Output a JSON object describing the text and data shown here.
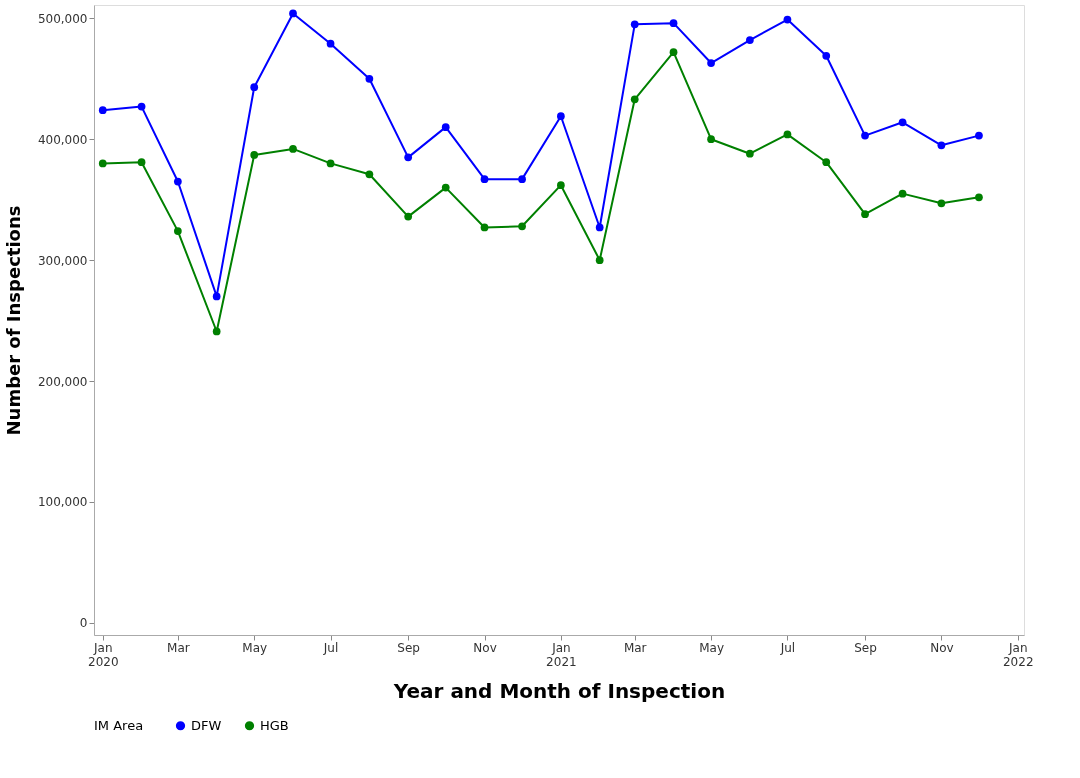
{
  "chart_data": {
    "type": "line",
    "xlabel": "Year and Month of Inspection",
    "ylabel": "Number of Inspections",
    "legend_title": "IM Area",
    "x": [
      "2020-01",
      "2020-02",
      "2020-03",
      "2020-04",
      "2020-05",
      "2020-06",
      "2020-07",
      "2020-08",
      "2020-09",
      "2020-10",
      "2020-11",
      "2020-12",
      "2021-01",
      "2021-02",
      "2021-03",
      "2021-04",
      "2021-05",
      "2021-06",
      "2021-07",
      "2021-08",
      "2021-09",
      "2021-10",
      "2021-11",
      "2021-12"
    ],
    "series": [
      {
        "name": "DFW",
        "color": "#0000ff",
        "values": [
          424000,
          427000,
          365000,
          270000,
          443000,
          504000,
          479000,
          450000,
          385000,
          410000,
          367000,
          367000,
          419000,
          327000,
          495000,
          496000,
          463000,
          482000,
          499000,
          469000,
          403000,
          414000,
          395000,
          403000
        ]
      },
      {
        "name": "HGB",
        "color": "#008000",
        "values": [
          380000,
          381000,
          324000,
          241000,
          387000,
          392000,
          380000,
          371000,
          336000,
          360000,
          327000,
          328000,
          362000,
          300000,
          433000,
          472000,
          400000,
          388000,
          404000,
          381000,
          338000,
          355000,
          347000,
          352000
        ]
      }
    ],
    "xlim": [
      "2019-12-25",
      "2022-01-06"
    ],
    "xticks": [
      {
        "value": "2020-01",
        "label": "Jan 2020"
      },
      {
        "value": "2020-03",
        "label": "Mar"
      },
      {
        "value": "2020-05",
        "label": "May"
      },
      {
        "value": "2020-07",
        "label": "Jul"
      },
      {
        "value": "2020-09",
        "label": "Sep"
      },
      {
        "value": "2020-11",
        "label": "Nov"
      },
      {
        "value": "2021-01",
        "label": "Jan 2021"
      },
      {
        "value": "2021-03",
        "label": "Mar"
      },
      {
        "value": "2021-05",
        "label": "May"
      },
      {
        "value": "2021-07",
        "label": "Jul"
      },
      {
        "value": "2021-09",
        "label": "Sep"
      },
      {
        "value": "2021-11",
        "label": "Nov"
      },
      {
        "value": "2022-01",
        "label": "Jan 2022"
      }
    ],
    "ylim": [
      -10000,
      511000
    ],
    "yticks": [
      {
        "value": 0,
        "label": "0"
      },
      {
        "value": 100000,
        "label": "100,000"
      },
      {
        "value": 200000,
        "label": "200,000"
      },
      {
        "value": 300000,
        "label": "300,000"
      },
      {
        "value": 400000,
        "label": "400,000"
      },
      {
        "value": 500000,
        "label": "500,000"
      }
    ],
    "grid": false,
    "legend": "bottom",
    "marker": "circle",
    "line_style": "solid"
  }
}
